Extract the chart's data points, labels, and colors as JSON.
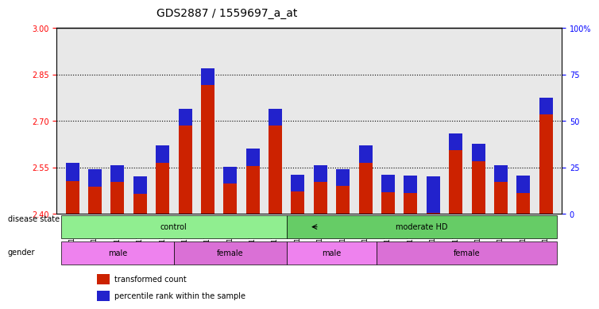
{
  "title": "GDS2887 / 1559697_a_at",
  "samples": [
    "GSM217771",
    "GSM217772",
    "GSM217773",
    "GSM217774",
    "GSM217775",
    "GSM217766",
    "GSM217767",
    "GSM217768",
    "GSM217769",
    "GSM217770",
    "GSM217784",
    "GSM217785",
    "GSM217786",
    "GSM217787",
    "GSM217776",
    "GSM217777",
    "GSM217778",
    "GSM217779",
    "GSM217780",
    "GSM217781",
    "GSM217782",
    "GSM217783"
  ],
  "red_values": [
    2.505,
    2.488,
    2.502,
    2.465,
    2.565,
    2.685,
    2.815,
    2.498,
    2.555,
    2.685,
    2.472,
    2.502,
    2.49,
    2.565,
    2.47,
    2.468,
    2.402,
    2.605,
    2.57,
    2.502,
    2.468,
    2.72
  ],
  "blue_values": [
    0.06,
    0.055,
    0.055,
    0.055,
    0.055,
    0.055,
    0.055,
    0.055,
    0.055,
    0.055,
    0.055,
    0.055,
    0.055,
    0.055,
    0.055,
    0.055,
    0.12,
    0.055,
    0.055,
    0.055,
    0.055,
    0.055
  ],
  "ylim_left": [
    2.4,
    3.0
  ],
  "ylim_right": [
    0,
    100
  ],
  "yticks_left": [
    2.4,
    2.55,
    2.7,
    2.85,
    3.0
  ],
  "yticks_right": [
    0,
    25,
    50,
    75,
    100
  ],
  "ytick_labels_right": [
    "0",
    "25",
    "50",
    "75",
    "100%"
  ],
  "hlines": [
    2.55,
    2.7,
    2.85
  ],
  "base": 2.4,
  "disease_state_groups": [
    {
      "label": "control",
      "start": 0,
      "end": 10,
      "color": "#90EE90"
    },
    {
      "label": "moderate HD",
      "start": 10,
      "end": 22,
      "color": "#66CC66"
    }
  ],
  "gender_groups": [
    {
      "label": "male",
      "start": 0,
      "end": 5,
      "color": "#EE82EE"
    },
    {
      "label": "female",
      "start": 5,
      "end": 10,
      "color": "#DA70D6"
    },
    {
      "label": "male",
      "start": 10,
      "end": 14,
      "color": "#EE82EE"
    },
    {
      "label": "female",
      "start": 14,
      "end": 22,
      "color": "#DA70D6"
    }
  ],
  "bar_color_red": "#CC2200",
  "bar_color_blue": "#2222CC",
  "bg_color": "#E8E8E8",
  "bar_width": 0.6,
  "legend_items": [
    {
      "label": "transformed count",
      "color": "#CC2200"
    },
    {
      "label": "percentile rank within the sample",
      "color": "#2222CC"
    }
  ]
}
